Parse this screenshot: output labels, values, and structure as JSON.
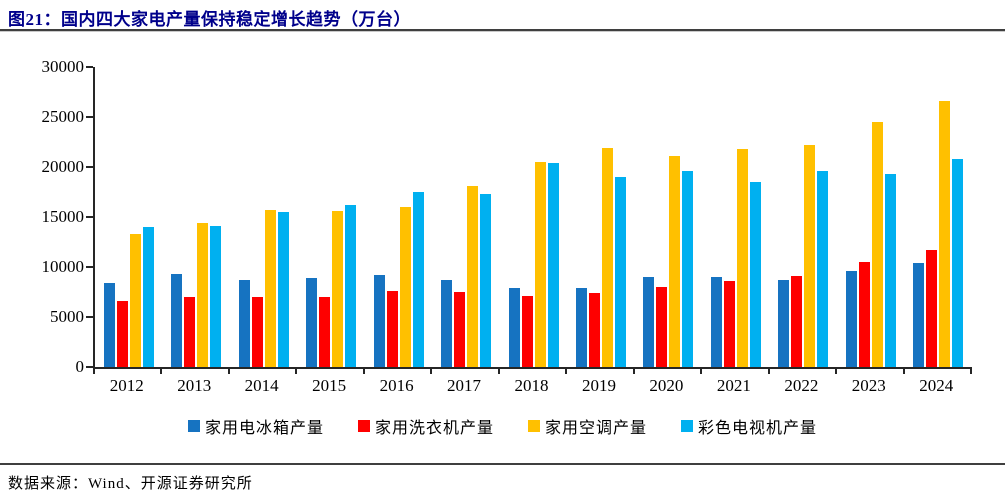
{
  "title": "图21：国内四大家电产量保持稳定增长趋势（万台）",
  "source": "数据来源：Wind、开源证券研究所",
  "title_color": "#00008B",
  "chart_data": {
    "type": "bar",
    "title": "国内四大家电产量保持稳定增长趋势（万台）",
    "xlabel": "",
    "ylabel": "",
    "ylim": [
      0,
      30000
    ],
    "yticks": [
      0,
      5000,
      10000,
      15000,
      20000,
      25000,
      30000
    ],
    "grid": false,
    "legend_position": "bottom",
    "categories": [
      "2012",
      "2013",
      "2014",
      "2015",
      "2016",
      "2017",
      "2018",
      "2019",
      "2020",
      "2021",
      "2022",
      "2023",
      "2024"
    ],
    "series": [
      {
        "name": "家用电冰箱产量",
        "color": "#1673C1",
        "values": [
          8400,
          9300,
          8750,
          8870,
          9238,
          8670,
          7900,
          7904,
          9015,
          8992,
          8664,
          9632,
          10395
        ]
      },
      {
        "name": "家用洗衣机产量",
        "color": "#FE0000",
        "values": [
          6650,
          7040,
          6990,
          7040,
          7621,
          7500,
          7100,
          7433,
          8042,
          8618,
          9106,
          10458,
          11719
        ]
      },
      {
        "name": "家用空调产量",
        "color": "#FFC000",
        "values": [
          13350,
          14400,
          15680,
          15650,
          16049,
          18080,
          20500,
          21866,
          21100,
          21836,
          22247,
          24487,
          26598
        ]
      },
      {
        "name": "彩色电视机产量",
        "color": "#00B0F0",
        "values": [
          14000,
          14060,
          15480,
          16250,
          17510,
          17300,
          20400,
          18999,
          19626,
          18497,
          19578,
          19339,
          20771
        ]
      }
    ]
  }
}
